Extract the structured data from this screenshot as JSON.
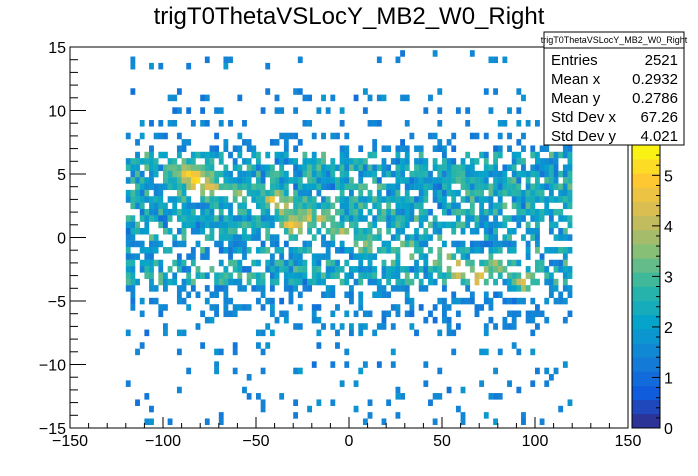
{
  "chart_data": {
    "type": "heatmap",
    "title": "trigT0ThetaVSLocY_MB2_W0_Right",
    "xlabel": "",
    "ylabel": "",
    "xlim": [
      -150,
      150
    ],
    "ylim": [
      -15,
      15
    ],
    "x_ticks": [
      "−150",
      "−100",
      "−50",
      "0",
      "50",
      "100",
      "150"
    ],
    "x_tick_values": [
      -150,
      -100,
      -50,
      0,
      50,
      100,
      150
    ],
    "y_ticks": [
      "−15",
      "−10",
      "−5",
      "0",
      "5",
      "10",
      "15"
    ],
    "y_tick_values": [
      -15,
      -10,
      -5,
      0,
      5,
      10,
      15
    ],
    "z_range": [
      0,
      5.6
    ],
    "z_ticks": [
      "0",
      "1",
      "2",
      "3",
      "4",
      "5"
    ],
    "z_tick_values": [
      0,
      1,
      2,
      3,
      4,
      5
    ],
    "palette": [
      "#352a87",
      "#0f5cdd",
      "#1481d6",
      "#06a4ca",
      "#2eb7a4",
      "#87bf77",
      "#d1bb59",
      "#fec832",
      "#f9fb0e"
    ],
    "stats": {
      "name": "trigT0ThetaVSLocY_MB2_W0_Right",
      "rows": [
        {
          "label": "Entries",
          "value": "2521"
        },
        {
          "label": "Mean x",
          "value": "0.2932"
        },
        {
          "label": "Mean y",
          "value": "0.2786"
        },
        {
          "label": "Std Dev x",
          "value": "67.26"
        },
        {
          "label": "Std Dev y",
          "value": "4.021"
        }
      ]
    },
    "distribution": {
      "entries": 2521,
      "x_range": [
        -120,
        120
      ],
      "y_bins": [
        {
          "y": 14.5,
          "weight": 0.2
        },
        {
          "y": 14.0,
          "weight": 0.3
        },
        {
          "y": 13.5,
          "weight": 0.2
        },
        {
          "y": 11.5,
          "weight": 0.6
        },
        {
          "y": 11.0,
          "weight": 1.2
        },
        {
          "y": 10.0,
          "weight": 1.1
        },
        {
          "y": 9.0,
          "weight": 1.4
        },
        {
          "y": 8.0,
          "weight": 1.6
        },
        {
          "y": 7.5,
          "weight": 1.3
        },
        {
          "y": 7.0,
          "weight": 1.8
        },
        {
          "y": 6.5,
          "weight": 3.2
        },
        {
          "y": 6.0,
          "weight": 3.6
        },
        {
          "y": 5.5,
          "weight": 4.4
        },
        {
          "y": 5.0,
          "weight": 4.8
        },
        {
          "y": 4.5,
          "weight": 4.5
        },
        {
          "y": 4.0,
          "weight": 4.9
        },
        {
          "y": 3.5,
          "weight": 3.8
        },
        {
          "y": 3.0,
          "weight": 4.6
        },
        {
          "y": 2.5,
          "weight": 3.9
        },
        {
          "y": 2.0,
          "weight": 4.2
        },
        {
          "y": 1.5,
          "weight": 4.6
        },
        {
          "y": 1.0,
          "weight": 4.0
        },
        {
          "y": 0.5,
          "weight": 3.6
        },
        {
          "y": 0.0,
          "weight": 3.2
        },
        {
          "y": -0.5,
          "weight": 2.6
        },
        {
          "y": -1.0,
          "weight": 4.0
        },
        {
          "y": -1.5,
          "weight": 2.8
        },
        {
          "y": -2.0,
          "weight": 3.6
        },
        {
          "y": -2.5,
          "weight": 3.8
        },
        {
          "y": -3.0,
          "weight": 4.2
        },
        {
          "y": -3.5,
          "weight": 3.4
        },
        {
          "y": -4.0,
          "weight": 2.2
        },
        {
          "y": -4.5,
          "weight": 2.0
        },
        {
          "y": -5.0,
          "weight": 2.2
        },
        {
          "y": -5.5,
          "weight": 1.4
        },
        {
          "y": -6.0,
          "weight": 1.8
        },
        {
          "y": -6.5,
          "weight": 1.2
        },
        {
          "y": -7.0,
          "weight": 1.6
        },
        {
          "y": -7.5,
          "weight": 0.9
        },
        {
          "y": -8.5,
          "weight": 0.6
        },
        {
          "y": -9.0,
          "weight": 0.8
        },
        {
          "y": -10.0,
          "weight": 0.5
        },
        {
          "y": -10.5,
          "weight": 0.6
        },
        {
          "y": -11.0,
          "weight": 0.4
        },
        {
          "y": -11.5,
          "weight": 0.6
        },
        {
          "y": -12.0,
          "weight": 0.4
        },
        {
          "y": -12.5,
          "weight": 0.5
        },
        {
          "y": -13.0,
          "weight": 0.3
        },
        {
          "y": -13.5,
          "weight": 0.4
        },
        {
          "y": -14.0,
          "weight": 0.3
        },
        {
          "y": -14.5,
          "weight": 0.5
        }
      ],
      "hotspots": [
        {
          "x": -80,
          "y": 4.5,
          "z": 5.2
        },
        {
          "x": -85,
          "y": 5.0,
          "z": 4.8
        },
        {
          "x": -75,
          "y": 4.0,
          "z": 4.6
        },
        {
          "x": -40,
          "y": 3.0,
          "z": 4.4
        },
        {
          "x": -35,
          "y": 2.5,
          "z": 4.2
        },
        {
          "x": -25,
          "y": 1.5,
          "z": 4.8
        },
        {
          "x": -30,
          "y": 1.0,
          "z": 4.5
        },
        {
          "x": -15,
          "y": 1.5,
          "z": 4.3
        },
        {
          "x": -5,
          "y": 0.5,
          "z": 4.0
        },
        {
          "x": 10,
          "y": -0.5,
          "z": 3.9
        },
        {
          "x": 30,
          "y": -1.0,
          "z": 4.2
        },
        {
          "x": 50,
          "y": -1.5,
          "z": 4.3
        },
        {
          "x": 60,
          "y": -2.5,
          "z": 4.6
        },
        {
          "x": 70,
          "y": -3.0,
          "z": 4.8
        },
        {
          "x": 80,
          "y": -2.0,
          "z": 4.4
        },
        {
          "x": 95,
          "y": -3.5,
          "z": 4.1
        },
        {
          "x": -90,
          "y": 5.5,
          "z": 4.0
        },
        {
          "x": -60,
          "y": 3.5,
          "z": 3.8
        }
      ]
    }
  }
}
